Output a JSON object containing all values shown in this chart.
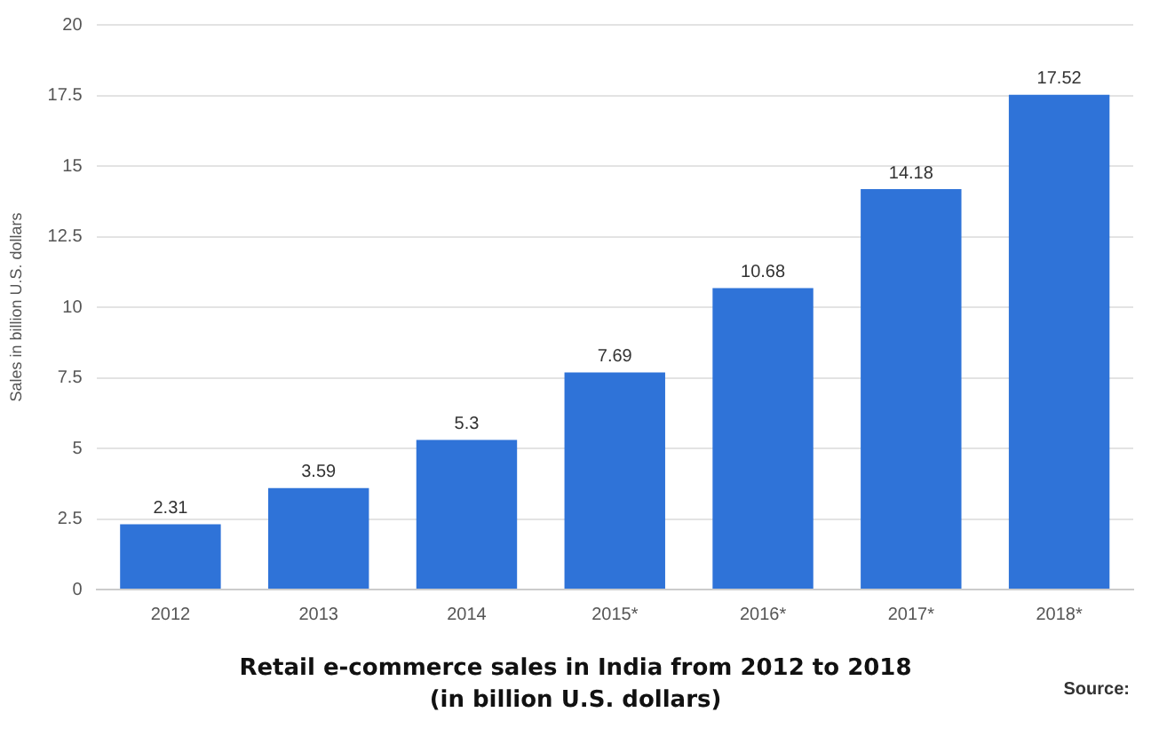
{
  "chart_data": {
    "type": "bar",
    "title": "Retail e-commerce sales in India from 2012 to 2018",
    "subtitle": "(in billion U.S. dollars)",
    "ylabel": "Sales in billion U.S. dollars",
    "categories": [
      "2012",
      "2013",
      "2014",
      "2015*",
      "2016*",
      "2017*",
      "2018*"
    ],
    "values": [
      2.31,
      3.59,
      5.3,
      7.69,
      10.68,
      14.18,
      17.52
    ],
    "color": "#2f73d8",
    "ylim": [
      0,
      20
    ],
    "yticks": [
      0,
      2.5,
      5,
      7.5,
      10,
      12.5,
      15,
      17.5,
      20
    ],
    "grid": "y",
    "data_labels": true,
    "annotations": [
      "Source:"
    ]
  }
}
